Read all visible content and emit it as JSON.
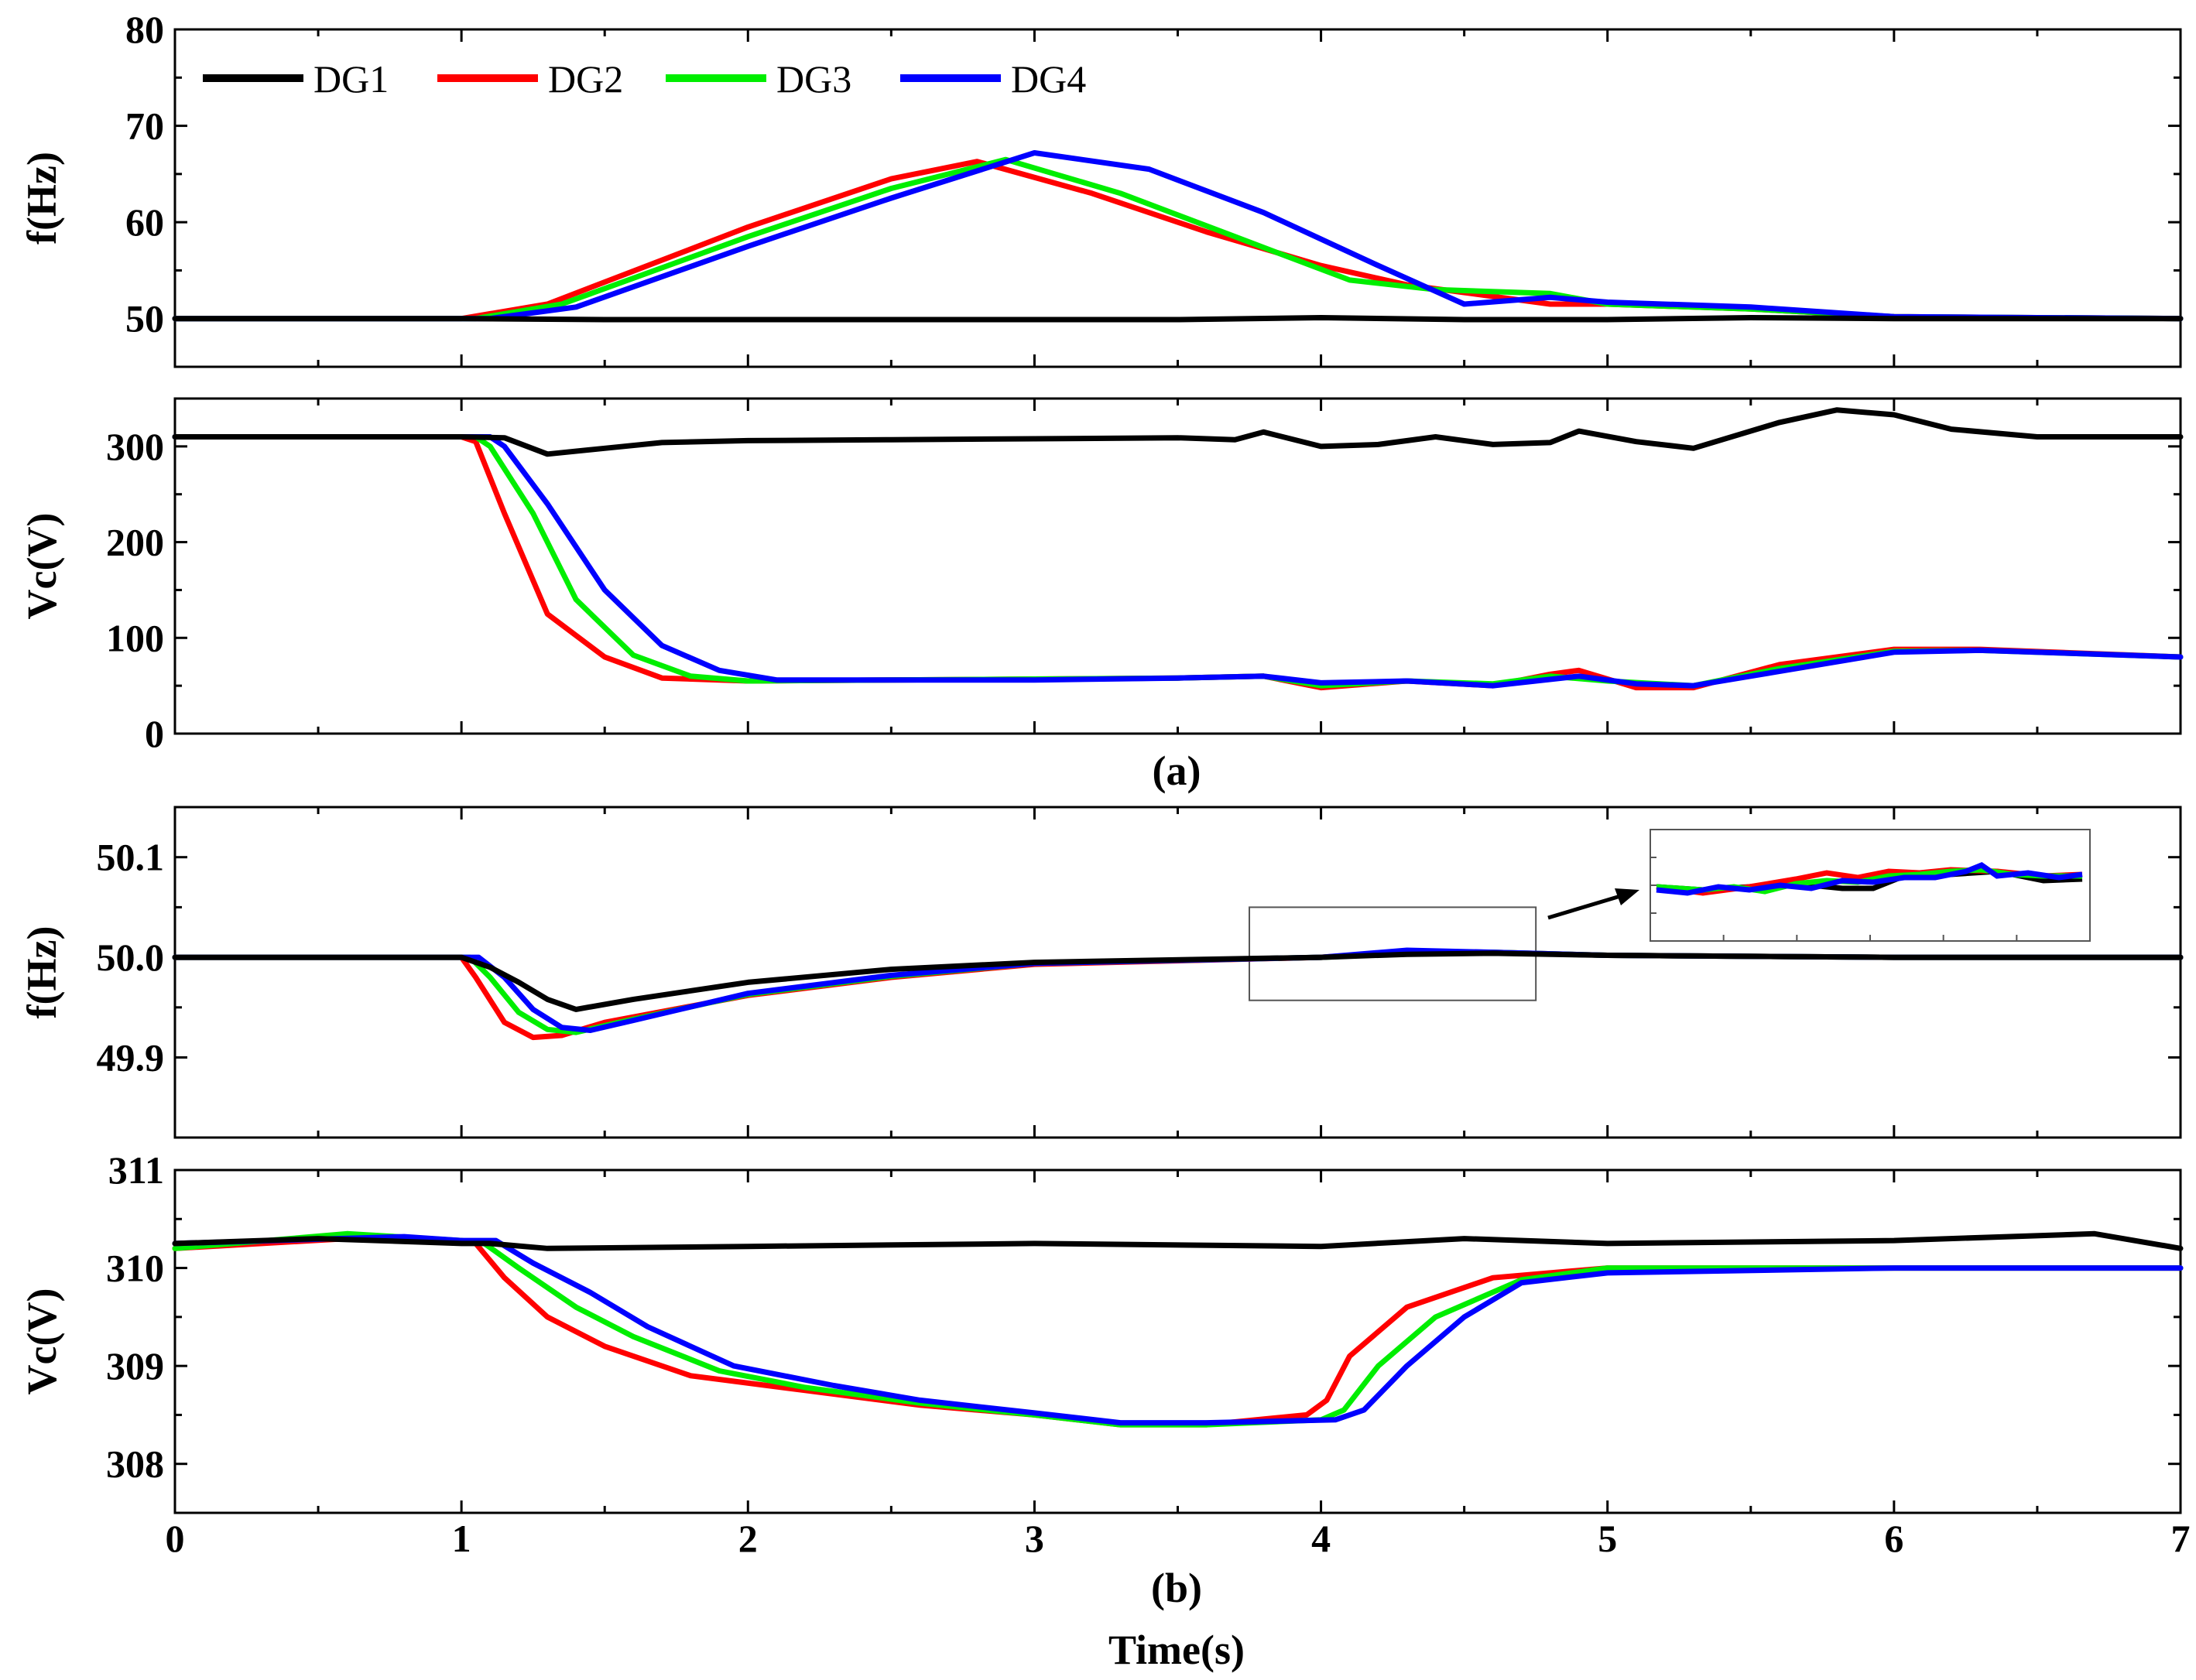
{
  "colors": {
    "DG1": "#000000",
    "DG2": "#ff0000",
    "DG3": "#00ee00",
    "DG4": "#0000ff"
  },
  "legend": [
    "DG1",
    "DG2",
    "DG3",
    "DG4"
  ],
  "captions": {
    "a": "(a)",
    "b": "(b)"
  },
  "xlabel": "Time(s)",
  "chart_data": [
    {
      "type": "line",
      "panel": "a-top",
      "ylabel": "f(Hz)",
      "xlim": [
        0,
        7
      ],
      "ylim": [
        45,
        80
      ],
      "yticks": [
        50,
        60,
        70,
        80
      ],
      "series": [
        {
          "name": "DG1",
          "x": [
            0,
            1,
            1.5,
            2,
            3,
            3.5,
            4,
            4.5,
            5,
            5.5,
            6,
            7
          ],
          "y": [
            50,
            50,
            49.9,
            49.9,
            49.9,
            49.9,
            50.1,
            49.9,
            49.9,
            50.1,
            50,
            50
          ]
        },
        {
          "name": "DG2",
          "x": [
            0,
            1,
            1.3,
            2,
            2.5,
            2.8,
            3.2,
            3.6,
            4,
            4.3,
            4.8,
            5,
            5.5,
            6,
            7
          ],
          "y": [
            50,
            50,
            51.5,
            59.5,
            64.5,
            66.3,
            63,
            59,
            55.5,
            53.5,
            51.5,
            51.5,
            51,
            50.2,
            50
          ]
        },
        {
          "name": "DG3",
          "x": [
            0,
            1.05,
            1.35,
            2,
            2.5,
            2.9,
            3.3,
            3.7,
            4.1,
            4.4,
            4.8,
            5,
            5.5,
            6,
            7
          ],
          "y": [
            50,
            50,
            51.5,
            58.5,
            63.5,
            66.5,
            63,
            58.5,
            54,
            53,
            52.6,
            51.5,
            51,
            50.2,
            50
          ]
        },
        {
          "name": "DG4",
          "x": [
            0,
            1.1,
            1.4,
            2,
            2.5,
            3,
            3.4,
            3.8,
            4.2,
            4.5,
            4.8,
            5,
            5.5,
            6,
            7
          ],
          "y": [
            50,
            50,
            51.2,
            57.5,
            62.5,
            67.2,
            65.5,
            61,
            55.5,
            51.5,
            52.2,
            51.7,
            51.2,
            50.2,
            50
          ]
        }
      ]
    },
    {
      "type": "line",
      "panel": "a-bottom",
      "ylabel": "Vc(V)",
      "xlim": [
        0,
        7
      ],
      "ylim": [
        0,
        350
      ],
      "yticks": [
        0,
        100,
        200,
        300
      ],
      "series": [
        {
          "name": "DG1",
          "x": [
            0,
            1,
            1.15,
            1.3,
            1.5,
            1.7,
            2,
            2.5,
            3,
            3.5,
            3.7,
            3.8,
            4,
            4.2,
            4.4,
            4.6,
            4.8,
            4.9,
            5.1,
            5.3,
            5.6,
            5.8,
            6,
            6.2,
            6.5,
            7
          ],
          "y": [
            310,
            310,
            309,
            292,
            298,
            304,
            306,
            307,
            308,
            309,
            307,
            315,
            300,
            302,
            310,
            302,
            304,
            316,
            305,
            298,
            325,
            338,
            333,
            318,
            310,
            310
          ]
        },
        {
          "name": "DG2",
          "x": [
            0,
            1,
            1.05,
            1.15,
            1.3,
            1.5,
            1.7,
            2,
            3,
            3.5,
            3.8,
            4,
            4.3,
            4.6,
            4.8,
            4.9,
            5.1,
            5.3,
            5.6,
            6,
            6.3,
            7
          ],
          "y": [
            310,
            310,
            305,
            230,
            125,
            80,
            58,
            55,
            57,
            58,
            60,
            48,
            55,
            50,
            62,
            66,
            48,
            48,
            72,
            88,
            88,
            80
          ]
        },
        {
          "name": "DG3",
          "x": [
            0,
            1.05,
            1.1,
            1.25,
            1.4,
            1.6,
            1.8,
            2,
            3,
            3.5,
            3.8,
            4,
            4.3,
            4.6,
            4.8,
            5,
            5.3,
            5.6,
            6,
            6.3,
            7
          ],
          "y": [
            310,
            310,
            300,
            230,
            140,
            82,
            60,
            55,
            57,
            58,
            60,
            50,
            55,
            52,
            60,
            55,
            50,
            68,
            86,
            87,
            80
          ]
        },
        {
          "name": "DG4",
          "x": [
            0,
            1.1,
            1.15,
            1.3,
            1.5,
            1.7,
            1.9,
            2.1,
            3,
            3.5,
            3.8,
            4,
            4.3,
            4.6,
            4.9,
            5.1,
            5.3,
            5.6,
            6,
            6.3,
            7
          ],
          "y": [
            310,
            310,
            300,
            240,
            150,
            92,
            66,
            56,
            56,
            58,
            60,
            53,
            55,
            50,
            60,
            52,
            50,
            65,
            85,
            87,
            80
          ]
        }
      ]
    },
    {
      "type": "line",
      "panel": "b-top",
      "ylabel": "f(Hz)",
      "xlim": [
        0,
        7
      ],
      "ylim": [
        49.82,
        50.15
      ],
      "yticks": [
        49.9,
        50.0,
        50.1
      ],
      "yticklabels": [
        "49.9",
        "50.0",
        "50.1"
      ],
      "inset_box": {
        "x": [
          3.75,
          4.75
        ],
        "y": [
          49.957,
          50.05
        ]
      },
      "series": [
        {
          "name": "DG1",
          "x": [
            0,
            1,
            1.1,
            1.2,
            1.3,
            1.4,
            1.6,
            2,
            2.5,
            3,
            4,
            4.3,
            4.6,
            5,
            6,
            7
          ],
          "y": [
            50,
            50,
            49.99,
            49.975,
            49.958,
            49.948,
            49.958,
            49.975,
            49.988,
            49.995,
            50,
            50.003,
            50.004,
            50.002,
            50,
            50
          ]
        },
        {
          "name": "DG2",
          "x": [
            0,
            1,
            1.05,
            1.15,
            1.25,
            1.35,
            1.5,
            2,
            2.5,
            3,
            4,
            4.3,
            4.6,
            5,
            6,
            7
          ],
          "y": [
            50,
            50,
            49.98,
            49.935,
            49.92,
            49.922,
            49.935,
            49.962,
            49.98,
            49.993,
            50,
            50.006,
            50.005,
            50.002,
            50,
            50
          ]
        },
        {
          "name": "DG3",
          "x": [
            0,
            1.03,
            1.1,
            1.2,
            1.3,
            1.4,
            1.55,
            2,
            2.5,
            3,
            4,
            4.3,
            4.6,
            5,
            6,
            7
          ],
          "y": [
            50,
            50,
            49.98,
            49.945,
            49.928,
            49.925,
            49.935,
            49.963,
            49.981,
            49.994,
            50,
            50.004,
            50.005,
            50.002,
            50,
            50
          ]
        },
        {
          "name": "DG4",
          "x": [
            0,
            1.06,
            1.15,
            1.25,
            1.35,
            1.45,
            1.6,
            2,
            2.5,
            3,
            4,
            4.3,
            4.6,
            5,
            6,
            7
          ],
          "y": [
            50,
            50,
            49.98,
            49.948,
            49.93,
            49.927,
            49.937,
            49.964,
            49.982,
            49.994,
            50,
            50.007,
            50.005,
            50.002,
            50,
            50
          ]
        }
      ]
    },
    {
      "type": "line",
      "panel": "b-bottom",
      "ylabel": "Vc(V)",
      "xlim": [
        0,
        7
      ],
      "ylim": [
        307.5,
        311
      ],
      "yticks": [
        308,
        309,
        310,
        311
      ],
      "series": [
        {
          "name": "DG1",
          "x": [
            0,
            0.5,
            1,
            1.1,
            1.3,
            2,
            3,
            4,
            4.5,
            5,
            6,
            6.7,
            7
          ],
          "y": [
            310.25,
            310.3,
            310.25,
            310.25,
            310.2,
            310.22,
            310.25,
            310.22,
            310.3,
            310.25,
            310.28,
            310.35,
            310.2
          ]
        },
        {
          "name": "DG2",
          "x": [
            0,
            0.6,
            1,
            1.05,
            1.15,
            1.3,
            1.5,
            1.8,
            2.2,
            2.6,
            3,
            3.3,
            3.6,
            3.95,
            4.02,
            4.1,
            4.3,
            4.6,
            5,
            6,
            7
          ],
          "y": [
            310.2,
            310.3,
            310.28,
            310.25,
            309.9,
            309.5,
            309.2,
            308.9,
            308.75,
            308.6,
            308.5,
            308.4,
            308.4,
            308.5,
            308.65,
            309.1,
            309.6,
            309.9,
            310,
            310,
            310
          ]
        },
        {
          "name": "DG3",
          "x": [
            0,
            0.6,
            1,
            1.08,
            1.2,
            1.4,
            1.6,
            1.9,
            2.2,
            2.6,
            3,
            3.3,
            3.6,
            4.0,
            4.08,
            4.2,
            4.4,
            4.7,
            5,
            6,
            7
          ],
          "y": [
            310.2,
            310.35,
            310.28,
            310.25,
            310,
            309.6,
            309.3,
            308.95,
            308.78,
            308.62,
            308.5,
            308.4,
            308.4,
            308.45,
            308.55,
            309,
            309.5,
            309.88,
            310,
            310,
            310
          ]
        },
        {
          "name": "DG4",
          "x": [
            0,
            0.8,
            1,
            1.12,
            1.25,
            1.45,
            1.65,
            1.95,
            2.3,
            2.6,
            3,
            3.3,
            3.6,
            4.05,
            4.15,
            4.3,
            4.5,
            4.7,
            5,
            6,
            7
          ],
          "y": [
            310.25,
            310.32,
            310.28,
            310.28,
            310.05,
            309.75,
            309.4,
            309,
            308.8,
            308.65,
            308.52,
            308.42,
            308.42,
            308.45,
            308.55,
            309,
            309.5,
            309.85,
            309.95,
            310,
            310
          ]
        }
      ]
    }
  ]
}
